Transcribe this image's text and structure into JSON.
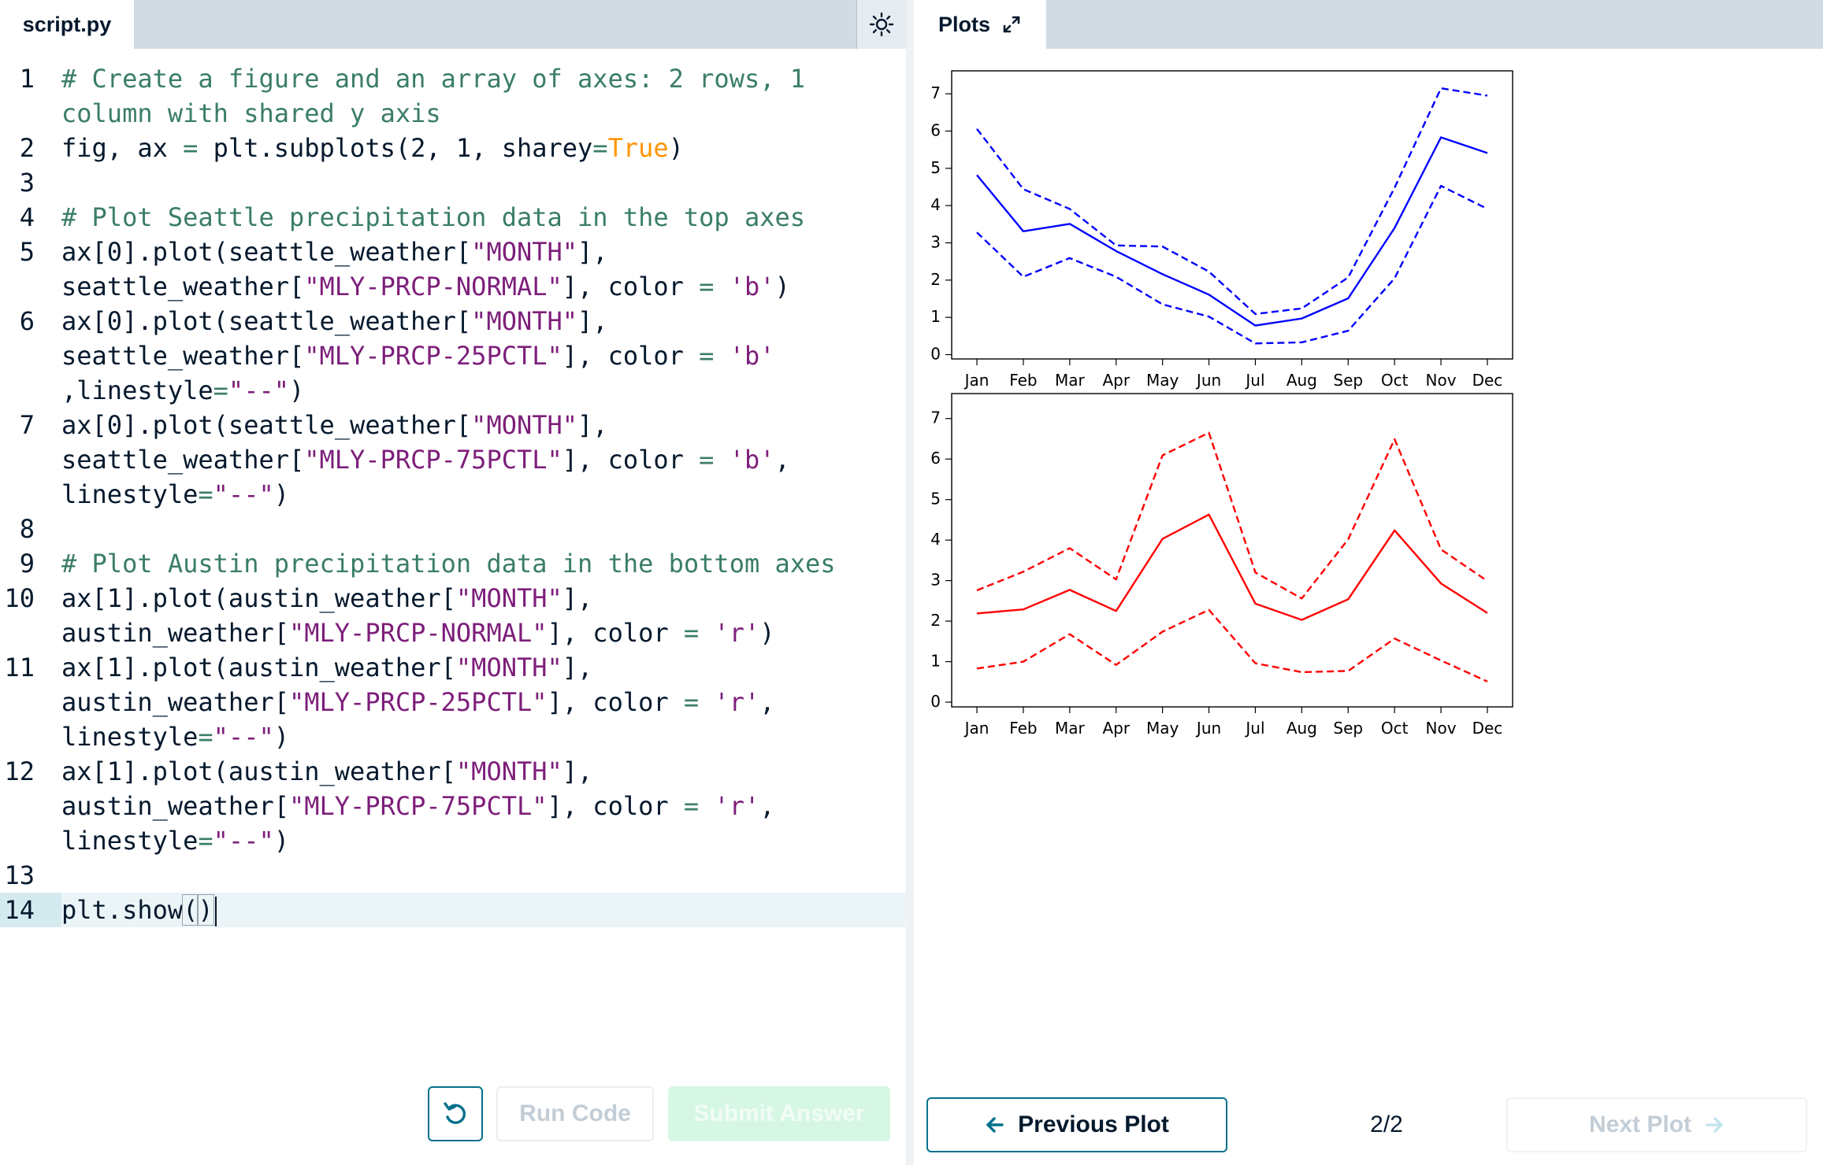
{
  "editor": {
    "tab_label": "script.py",
    "theme_icon": "sun-icon",
    "lines": [
      {
        "num": "1",
        "parts": [
          {
            "t": "# Create a figure and an array of axes: 2 rows, 1 column with shared y axis",
            "c": "cm"
          }
        ]
      },
      {
        "num": "2",
        "parts": [
          {
            "t": "fig, ax ",
            "c": ""
          },
          {
            "t": "=",
            "c": "op"
          },
          {
            "t": " plt.subplots(2, 1, sharey",
            "c": ""
          },
          {
            "t": "=",
            "c": "op"
          },
          {
            "t": "True",
            "c": "kw"
          },
          {
            "t": ")",
            "c": ""
          }
        ]
      },
      {
        "num": "3",
        "parts": []
      },
      {
        "num": "4",
        "parts": [
          {
            "t": "# Plot Seattle precipitation data in the top axes",
            "c": "cm"
          }
        ]
      },
      {
        "num": "5",
        "parts": [
          {
            "t": "ax[0].plot(seattle_weather[",
            "c": ""
          },
          {
            "t": "\"MONTH\"",
            "c": "str"
          },
          {
            "t": "],\nseattle_weather[",
            "c": ""
          },
          {
            "t": "\"MLY-PRCP-NORMAL\"",
            "c": "str"
          },
          {
            "t": "], color ",
            "c": ""
          },
          {
            "t": "=",
            "c": "op"
          },
          {
            "t": " ",
            "c": ""
          },
          {
            "t": "'b'",
            "c": "str"
          },
          {
            "t": ")",
            "c": ""
          }
        ]
      },
      {
        "num": "6",
        "parts": [
          {
            "t": "ax[0].plot(seattle_weather[",
            "c": ""
          },
          {
            "t": "\"MONTH\"",
            "c": "str"
          },
          {
            "t": "],\nseattle_weather[",
            "c": ""
          },
          {
            "t": "\"MLY-PRCP-25PCTL\"",
            "c": "str"
          },
          {
            "t": "], color ",
            "c": ""
          },
          {
            "t": "=",
            "c": "op"
          },
          {
            "t": " ",
            "c": ""
          },
          {
            "t": "'b'",
            "c": "str"
          },
          {
            "t": "\n,linestyle",
            "c": ""
          },
          {
            "t": "=",
            "c": "op"
          },
          {
            "t": "\"--\"",
            "c": "str"
          },
          {
            "t": ")",
            "c": ""
          }
        ]
      },
      {
        "num": "7",
        "parts": [
          {
            "t": "ax[0].plot(seattle_weather[",
            "c": ""
          },
          {
            "t": "\"MONTH\"",
            "c": "str"
          },
          {
            "t": "],\nseattle_weather[",
            "c": ""
          },
          {
            "t": "\"MLY-PRCP-75PCTL\"",
            "c": "str"
          },
          {
            "t": "], color ",
            "c": ""
          },
          {
            "t": "=",
            "c": "op"
          },
          {
            "t": " ",
            "c": ""
          },
          {
            "t": "'b'",
            "c": "str"
          },
          {
            "t": ",\nlinestyle",
            "c": ""
          },
          {
            "t": "=",
            "c": "op"
          },
          {
            "t": "\"--\"",
            "c": "str"
          },
          {
            "t": ")",
            "c": ""
          }
        ]
      },
      {
        "num": "8",
        "parts": []
      },
      {
        "num": "9",
        "parts": [
          {
            "t": "# Plot Austin precipitation data in the bottom axes",
            "c": "cm"
          }
        ]
      },
      {
        "num": "10",
        "parts": [
          {
            "t": "ax[1].plot(austin_weather[",
            "c": ""
          },
          {
            "t": "\"MONTH\"",
            "c": "str"
          },
          {
            "t": "],\naustin_weather[",
            "c": ""
          },
          {
            "t": "\"MLY-PRCP-NORMAL\"",
            "c": "str"
          },
          {
            "t": "], color ",
            "c": ""
          },
          {
            "t": "=",
            "c": "op"
          },
          {
            "t": " ",
            "c": ""
          },
          {
            "t": "'r'",
            "c": "str"
          },
          {
            "t": ")",
            "c": ""
          }
        ]
      },
      {
        "num": "11",
        "parts": [
          {
            "t": "ax[1].plot(austin_weather[",
            "c": ""
          },
          {
            "t": "\"MONTH\"",
            "c": "str"
          },
          {
            "t": "],\naustin_weather[",
            "c": ""
          },
          {
            "t": "\"MLY-PRCP-25PCTL\"",
            "c": "str"
          },
          {
            "t": "], color ",
            "c": ""
          },
          {
            "t": "=",
            "c": "op"
          },
          {
            "t": " ",
            "c": ""
          },
          {
            "t": "'r'",
            "c": "str"
          },
          {
            "t": ",\nlinestyle",
            "c": ""
          },
          {
            "t": "=",
            "c": "op"
          },
          {
            "t": "\"--\"",
            "c": "str"
          },
          {
            "t": ")",
            "c": ""
          }
        ]
      },
      {
        "num": "12",
        "parts": [
          {
            "t": "ax[1].plot(austin_weather[",
            "c": ""
          },
          {
            "t": "\"MONTH\"",
            "c": "str"
          },
          {
            "t": "],\naustin_weather[",
            "c": ""
          },
          {
            "t": "\"MLY-PRCP-75PCTL\"",
            "c": "str"
          },
          {
            "t": "], color ",
            "c": ""
          },
          {
            "t": "=",
            "c": "op"
          },
          {
            "t": " ",
            "c": ""
          },
          {
            "t": "'r'",
            "c": "str"
          },
          {
            "t": ",\nlinestyle",
            "c": ""
          },
          {
            "t": "=",
            "c": "op"
          },
          {
            "t": "\"--\"",
            "c": "str"
          },
          {
            "t": ")",
            "c": ""
          }
        ]
      },
      {
        "num": "13",
        "parts": []
      },
      {
        "num": "14",
        "parts": [
          {
            "t": "plt.show",
            "c": ""
          },
          {
            "t": "(",
            "c": "bracket"
          },
          {
            "t": ")",
            "c": "bracket"
          }
        ],
        "current": true
      }
    ],
    "reset_icon": "undo-icon",
    "run_label": "Run Code",
    "submit_label": "Submit Answer"
  },
  "plots": {
    "tab_label": "Plots",
    "expand_icon": "expand-icon",
    "prev_label": "Previous Plot",
    "prev_icon": "arrow-left-icon",
    "page_indicator": "2/2",
    "next_label": "Next Plot",
    "next_icon": "arrow-right-icon"
  },
  "chart_data": [
    {
      "type": "line",
      "categories": [
        "Jan",
        "Feb",
        "Mar",
        "Apr",
        "May",
        "Jun",
        "Jul",
        "Aug",
        "Sep",
        "Oct",
        "Nov",
        "Dec"
      ],
      "ylim": [
        0,
        7.5
      ],
      "yticks": [
        0,
        1,
        2,
        3,
        4,
        5,
        6,
        7
      ],
      "color": "#0000ff",
      "series": [
        {
          "style": "solid",
          "values": [
            4.82,
            3.31,
            3.51,
            2.78,
            2.16,
            1.61,
            0.78,
            0.97,
            1.51,
            3.4,
            5.83,
            5.41
          ]
        },
        {
          "style": "dashed",
          "values": [
            3.28,
            2.09,
            2.59,
            2.09,
            1.35,
            1.02,
            0.3,
            0.33,
            0.64,
            2.05,
            4.53,
            3.91
          ]
        },
        {
          "style": "dashed",
          "values": [
            6.06,
            4.44,
            3.91,
            2.93,
            2.9,
            2.23,
            1.09,
            1.24,
            2.07,
            4.48,
            7.15,
            6.95
          ]
        }
      ]
    },
    {
      "type": "line",
      "categories": [
        "Jan",
        "Feb",
        "Mar",
        "Apr",
        "May",
        "Jun",
        "Jul",
        "Aug",
        "Sep",
        "Oct",
        "Nov",
        "Dec"
      ],
      "ylim": [
        0,
        7.5
      ],
      "yticks": [
        0,
        1,
        2,
        3,
        4,
        5,
        6,
        7
      ],
      "color": "#ff0000",
      "series": [
        {
          "style": "solid",
          "values": [
            2.19,
            2.29,
            2.77,
            2.25,
            4.03,
            4.63,
            2.43,
            2.03,
            2.54,
            4.24,
            2.93,
            2.2
          ]
        },
        {
          "style": "dashed",
          "values": [
            0.83,
            1.0,
            1.68,
            0.92,
            1.74,
            2.28,
            0.96,
            0.74,
            0.77,
            1.57,
            1.03,
            0.51
          ]
        },
        {
          "style": "dashed",
          "values": [
            2.76,
            3.22,
            3.8,
            3.03,
            6.09,
            6.65,
            3.2,
            2.56,
            4.02,
            6.49,
            3.77,
            2.99
          ]
        }
      ]
    }
  ]
}
